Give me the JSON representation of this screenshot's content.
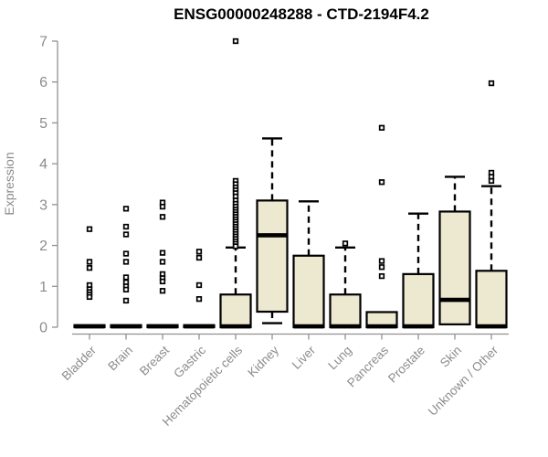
{
  "chart_data": {
    "type": "boxplot",
    "title": "ENSG00000248288 - CTD-2194F4.2",
    "xlabel": "",
    "ylabel": "Expression",
    "ylim": [
      0,
      7
    ],
    "yticks": [
      0,
      1,
      2,
      3,
      4,
      5,
      6,
      7
    ],
    "grid": false,
    "legend": "none",
    "categories": [
      "Bladder",
      "Brain",
      "Breast",
      "Gastric",
      "Hematopoietic cells",
      "Kidney",
      "Liver",
      "Lung",
      "Pancreas",
      "Prostate",
      "Skin",
      "Unknown / Other"
    ],
    "boxes": [
      {
        "label": "Bladder",
        "median": 0.02,
        "q1": 0,
        "q3": 0.05,
        "whisker_low": 0,
        "whisker_high": 0.08,
        "outliers": [
          2.4,
          1.6,
          1.45,
          1.03,
          0.93,
          0.86,
          0.8,
          0.74
        ]
      },
      {
        "label": "Brain",
        "median": 0.02,
        "q1": 0,
        "q3": 0.05,
        "whisker_low": 0,
        "whisker_high": 0.08,
        "outliers": [
          2.9,
          2.46,
          2.27,
          1.8,
          1.6,
          1.22,
          1.1,
          1.0,
          0.92,
          0.65
        ]
      },
      {
        "label": "Breast",
        "median": 0.02,
        "q1": 0,
        "q3": 0.05,
        "whisker_low": 0,
        "whisker_high": 0.08,
        "outliers": [
          3.05,
          2.95,
          2.7,
          1.82,
          1.6,
          1.3,
          1.2,
          1.12,
          0.89
        ]
      },
      {
        "label": "Gastric",
        "median": 0.02,
        "q1": 0,
        "q3": 0.05,
        "whisker_low": 0,
        "whisker_high": 0.08,
        "outliers": [
          1.85,
          1.7,
          1.03,
          0.69
        ]
      },
      {
        "label": "Hematopoietic cells",
        "median": 0.02,
        "q1": 0,
        "q3": 0.8,
        "whisker_low": 0,
        "whisker_high": 1.95,
        "outliers": [
          7.0,
          3.58,
          3.5,
          3.42,
          3.35,
          3.28,
          3.2,
          3.1,
          3.02,
          2.95,
          2.88,
          2.82,
          2.76,
          2.7,
          2.64,
          2.58,
          2.52,
          2.46,
          2.4,
          2.34,
          2.28,
          2.22,
          2.16,
          2.1,
          2.04,
          1.98
        ]
      },
      {
        "label": "Kidney",
        "median": 2.25,
        "q1": 0.38,
        "q3": 3.1,
        "whisker_low": 0.1,
        "whisker_high": 4.62,
        "outliers": []
      },
      {
        "label": "Liver",
        "median": 0.02,
        "q1": 0,
        "q3": 1.75,
        "whisker_low": 0,
        "whisker_high": 3.08,
        "outliers": []
      },
      {
        "label": "Lung",
        "median": 0.02,
        "q1": 0,
        "q3": 0.8,
        "whisker_low": 0,
        "whisker_high": 1.95,
        "outliers": [
          2.05
        ]
      },
      {
        "label": "Pancreas",
        "median": 0.02,
        "q1": 0,
        "q3": 0.37,
        "whisker_low": 0,
        "whisker_high": 0.4,
        "outliers": [
          4.88,
          3.55,
          1.62,
          1.47,
          1.25
        ]
      },
      {
        "label": "Prostate",
        "median": 0.02,
        "q1": 0,
        "q3": 1.3,
        "whisker_low": 0,
        "whisker_high": 2.78,
        "outliers": []
      },
      {
        "label": "Skin",
        "median": 0.67,
        "q1": 0.07,
        "q3": 2.83,
        "whisker_low": 0.07,
        "whisker_high": 3.68,
        "outliers": []
      },
      {
        "label": "Unknown / Other",
        "median": 0.02,
        "q1": 0,
        "q3": 1.38,
        "whisker_low": 0,
        "whisker_high": 3.45,
        "outliers": [
          5.97,
          3.78,
          3.68,
          3.58
        ]
      }
    ],
    "colors": {
      "box_fill": "#EDE8D0",
      "box_stroke": "#000000",
      "median_color": "#000000",
      "whisker_color": "#000000",
      "outlier_fill": "#FFFFFF",
      "outlier_stroke": "#000000",
      "axis": "#919191",
      "tick_label_color": "#8C8C8C",
      "title_color": "#000000",
      "background": "#FFFFFF"
    }
  }
}
